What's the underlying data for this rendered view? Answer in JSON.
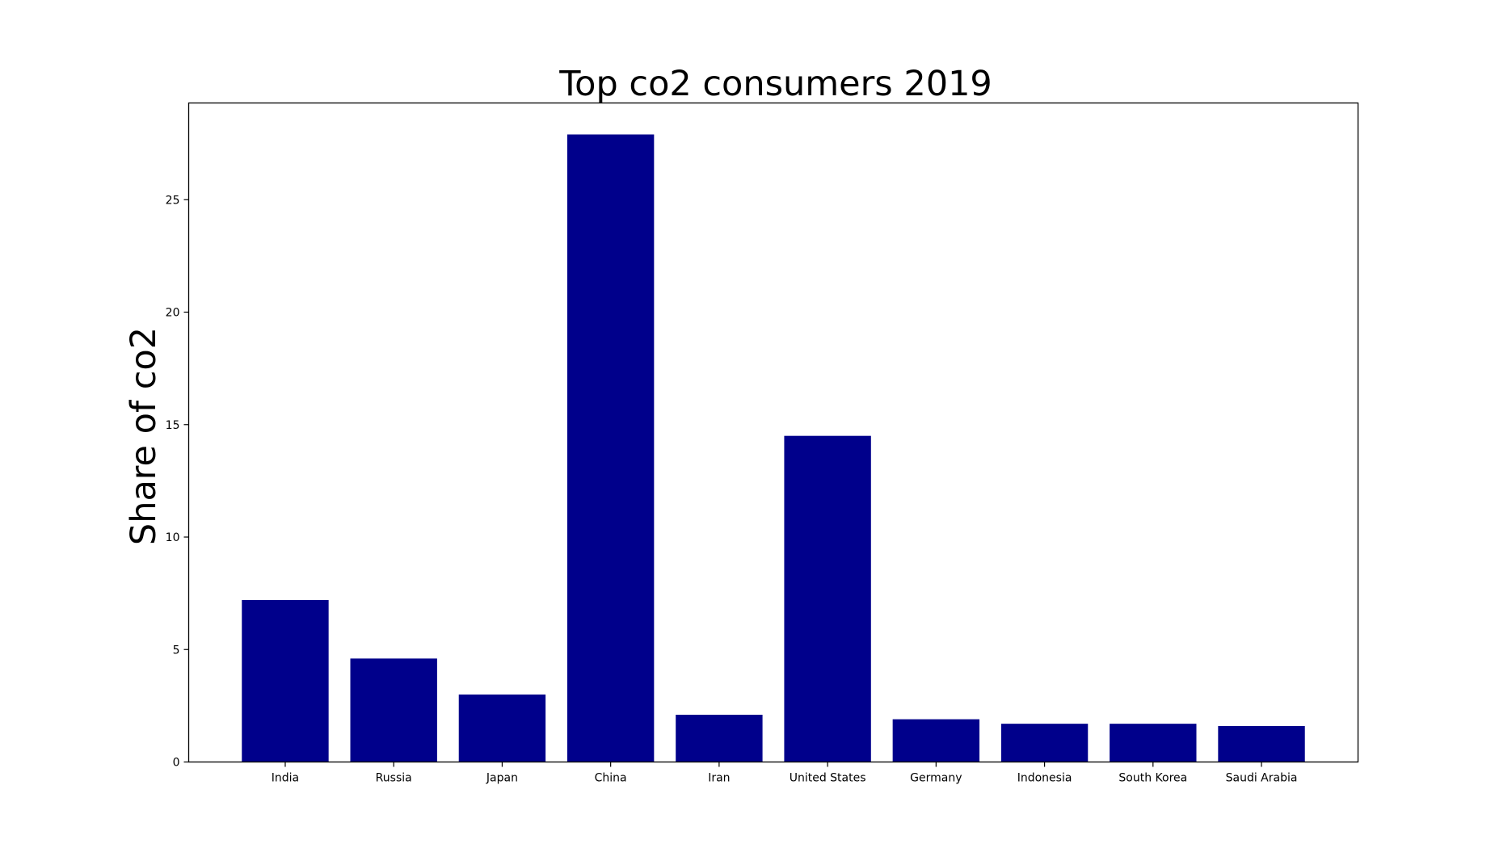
{
  "chart_data": {
    "type": "bar",
    "title": "Top co2 consumers 2019",
    "xlabel": "",
    "ylabel": "Share of co2",
    "categories": [
      "India",
      "Russia",
      "Japan",
      "China",
      "Iran",
      "United States",
      "Germany",
      "Indonesia",
      "South Korea",
      "Saudi Arabia"
    ],
    "values": [
      7.2,
      4.6,
      3.0,
      27.9,
      2.1,
      14.5,
      1.9,
      1.7,
      1.7,
      1.6
    ],
    "ylim": [
      0,
      29.3
    ],
    "yticks": [
      0,
      5,
      10,
      15,
      20,
      25
    ],
    "grid": false,
    "bar_color": "#00008b"
  }
}
